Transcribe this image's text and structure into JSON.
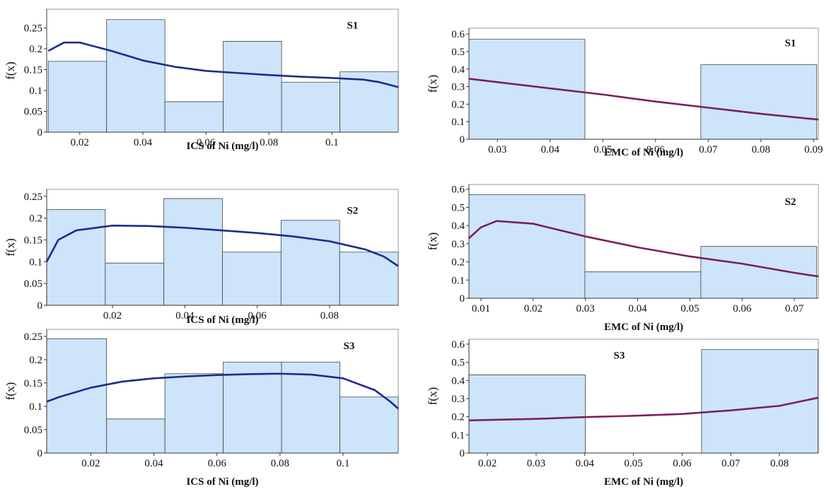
{
  "chart_data": [
    {
      "type": "histogram",
      "annotation": "S1",
      "xlabel": "ICS of Ni (mg/l)",
      "ylabel": "f(x)",
      "bins": [
        0.01,
        0.0285,
        0.047,
        0.0655,
        0.084,
        0.1025,
        0.121
      ],
      "values": [
        0.17,
        0.27,
        0.073,
        0.218,
        0.12,
        0.145
      ],
      "color": "#cde4fa",
      "curve": {
        "color": "#1c2b8c",
        "x": [
          0.01,
          0.015,
          0.02,
          0.03,
          0.04,
          0.05,
          0.06,
          0.07,
          0.08,
          0.09,
          0.1,
          0.11,
          0.115,
          0.121
        ],
        "values": [
          0.195,
          0.215,
          0.215,
          0.195,
          0.172,
          0.157,
          0.147,
          0.142,
          0.137,
          0.133,
          0.13,
          0.126,
          0.12,
          0.108
        ]
      },
      "xlim": [
        0.0095,
        0.121
      ],
      "ylim": [
        0,
        0.295
      ],
      "xticks": [
        0.02,
        0.04,
        0.06,
        0.08,
        0.1
      ],
      "yticks": [
        0,
        0.05,
        0.1,
        0.15,
        0.2,
        0.25
      ]
    },
    {
      "type": "histogram",
      "annotation": "S1",
      "xlabel": "EMC of Ni (mg/l)",
      "ylabel": "f(x)",
      "bins": [
        0.0246,
        0.0466,
        0.0686,
        0.0906
      ],
      "values": [
        0.57,
        0,
        0.425
      ],
      "color": "#cde4fa",
      "curve": {
        "color": "#7a1f5c",
        "x": [
          0.0246,
          0.04,
          0.05,
          0.06,
          0.07,
          0.08,
          0.0909
        ],
        "values": [
          0.345,
          0.29,
          0.255,
          0.215,
          0.18,
          0.145,
          0.112
        ]
      },
      "xlim": [
        0.0246,
        0.0909
      ],
      "ylim": [
        0,
        0.633
      ],
      "xticks": [
        0.03,
        0.04,
        0.05,
        0.06,
        0.07,
        0.08,
        0.09
      ],
      "yticks": [
        0,
        0.1,
        0.2,
        0.3,
        0.4,
        0.5,
        0.6
      ]
    },
    {
      "type": "histogram",
      "annotation": "S2",
      "xlabel": "ICS of Ni (mg/l)",
      "ylabel": "f(x)",
      "bins": [
        0.0018,
        0.018,
        0.0342,
        0.0504,
        0.0666,
        0.0828,
        0.099
      ],
      "values": [
        0.22,
        0.097,
        0.245,
        0.122,
        0.195,
        0.122
      ],
      "color": "#cde4fa",
      "curve": {
        "color": "#1c2b8c",
        "x": [
          0.0018,
          0.005,
          0.01,
          0.02,
          0.03,
          0.04,
          0.05,
          0.06,
          0.07,
          0.08,
          0.09,
          0.095,
          0.099
        ],
        "values": [
          0.1,
          0.15,
          0.172,
          0.183,
          0.182,
          0.178,
          0.172,
          0.166,
          0.158,
          0.147,
          0.128,
          0.112,
          0.09
        ]
      },
      "xlim": [
        0.0018,
        0.099
      ],
      "ylim": [
        0,
        0.266
      ],
      "xticks": [
        0.02,
        0.04,
        0.06,
        0.08
      ],
      "yticks": [
        0,
        0.05,
        0.1,
        0.15,
        0.2,
        0.25
      ]
    },
    {
      "type": "histogram",
      "annotation": "S2",
      "xlabel": "EMC of Ni (mg/l)",
      "ylabel": "f(x)",
      "bins": [
        0.0077,
        0.0299,
        0.0521,
        0.0743
      ],
      "values": [
        0.57,
        0.145,
        0.285
      ],
      "color": "#cde4fa",
      "curve": {
        "color": "#7a1f5c",
        "x": [
          0.0077,
          0.01,
          0.013,
          0.02,
          0.03,
          0.04,
          0.05,
          0.06,
          0.07,
          0.0746
        ],
        "values": [
          0.33,
          0.39,
          0.425,
          0.41,
          0.34,
          0.28,
          0.23,
          0.19,
          0.14,
          0.12
        ]
      },
      "xlim": [
        0.0077,
        0.0746
      ],
      "ylim": [
        0,
        0.626
      ],
      "xticks": [
        0.01,
        0.02,
        0.03,
        0.04,
        0.05,
        0.06,
        0.07
      ],
      "yticks": [
        0,
        0.1,
        0.2,
        0.3,
        0.4,
        0.5,
        0.6
      ]
    },
    {
      "type": "histogram",
      "annotation": "S3",
      "xlabel": "ICS of Ni (mg/l)",
      "ylabel": "f(x)",
      "bins": [
        0.006,
        0.025,
        0.0435,
        0.062,
        0.0805,
        0.099,
        0.1175
      ],
      "values": [
        0.245,
        0.073,
        0.17,
        0.195,
        0.195,
        0.12
      ],
      "color": "#cde4fa",
      "curve": {
        "color": "#1c2b8c",
        "x": [
          0.006,
          0.01,
          0.02,
          0.03,
          0.04,
          0.05,
          0.06,
          0.07,
          0.08,
          0.09,
          0.1,
          0.11,
          0.115,
          0.1175
        ],
        "values": [
          0.11,
          0.12,
          0.14,
          0.153,
          0.16,
          0.164,
          0.167,
          0.169,
          0.17,
          0.168,
          0.16,
          0.135,
          0.11,
          0.095
        ]
      },
      "xlim": [
        0.006,
        0.1175
      ],
      "ylim": [
        0,
        0.265
      ],
      "xticks": [
        0.02,
        0.04,
        0.06,
        0.08,
        0.1
      ],
      "yticks": [
        0,
        0.05,
        0.1,
        0.15,
        0.2,
        0.25
      ]
    },
    {
      "type": "histogram",
      "annotation": "S3",
      "xlabel": "EMC of Ni (mg/l)",
      "ylabel": "f(x)",
      "bins": [
        0.0162,
        0.0401,
        0.064,
        0.0879
      ],
      "values": [
        0.43,
        0,
        0.57
      ],
      "color": "#cde4fa",
      "curve": {
        "color": "#7a1f5c",
        "x": [
          0.0162,
          0.03,
          0.04,
          0.05,
          0.06,
          0.07,
          0.08,
          0.088
        ],
        "values": [
          0.18,
          0.188,
          0.198,
          0.205,
          0.215,
          0.235,
          0.26,
          0.305
        ]
      },
      "xlim": [
        0.0162,
        0.088
      ],
      "ylim": [
        0,
        0.627
      ],
      "xticks": [
        0.02,
        0.03,
        0.04,
        0.05,
        0.06,
        0.07,
        0.08
      ],
      "yticks": [
        0,
        0.1,
        0.2,
        0.3,
        0.4,
        0.5,
        0.6
      ]
    }
  ]
}
